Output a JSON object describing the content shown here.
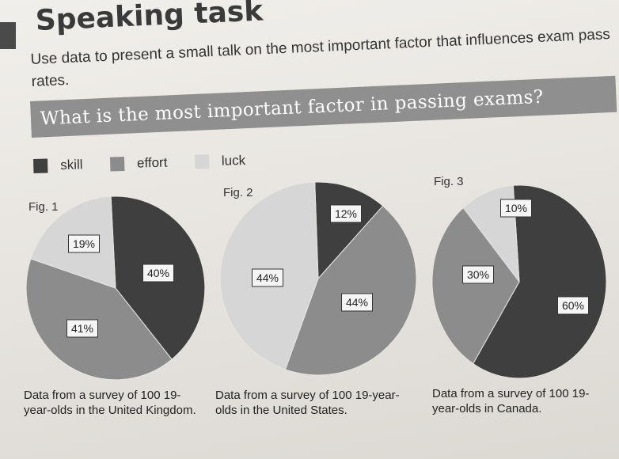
{
  "title": "Speaking task",
  "instructions": "Use data to present a small talk on the most important factor that influences exam pass rates.",
  "banner": "What is the most important factor in passing exams?",
  "legend": [
    {
      "label": "skill",
      "color": "#3f3f3f"
    },
    {
      "label": "effort",
      "color": "#8c8c8c"
    },
    {
      "label": "luck",
      "color": "#d6d6d6"
    }
  ],
  "chart_data": [
    {
      "type": "pie",
      "title": "Fig. 1",
      "categories": [
        "skill",
        "effort",
        "luck"
      ],
      "values": [
        40,
        41,
        19
      ],
      "labels": [
        "40%",
        "41%",
        "19%"
      ],
      "caption": "Data from a survey of 100 19-year-olds in the United Kingdom."
    },
    {
      "type": "pie",
      "title": "Fig. 2",
      "categories": [
        "skill",
        "effort",
        "luck"
      ],
      "values": [
        12,
        44,
        44
      ],
      "labels": [
        "12%",
        "44%",
        "44%"
      ],
      "caption": "Data from a survey of 100 19-year-olds in the United States."
    },
    {
      "type": "pie",
      "title": "Fig. 3",
      "categories": [
        "skill",
        "effort",
        "luck"
      ],
      "values": [
        60,
        30,
        10
      ],
      "labels": [
        "60%",
        "30%",
        "10%"
      ],
      "caption": "Data from a survey of 100 19-year-olds in Canada."
    }
  ]
}
